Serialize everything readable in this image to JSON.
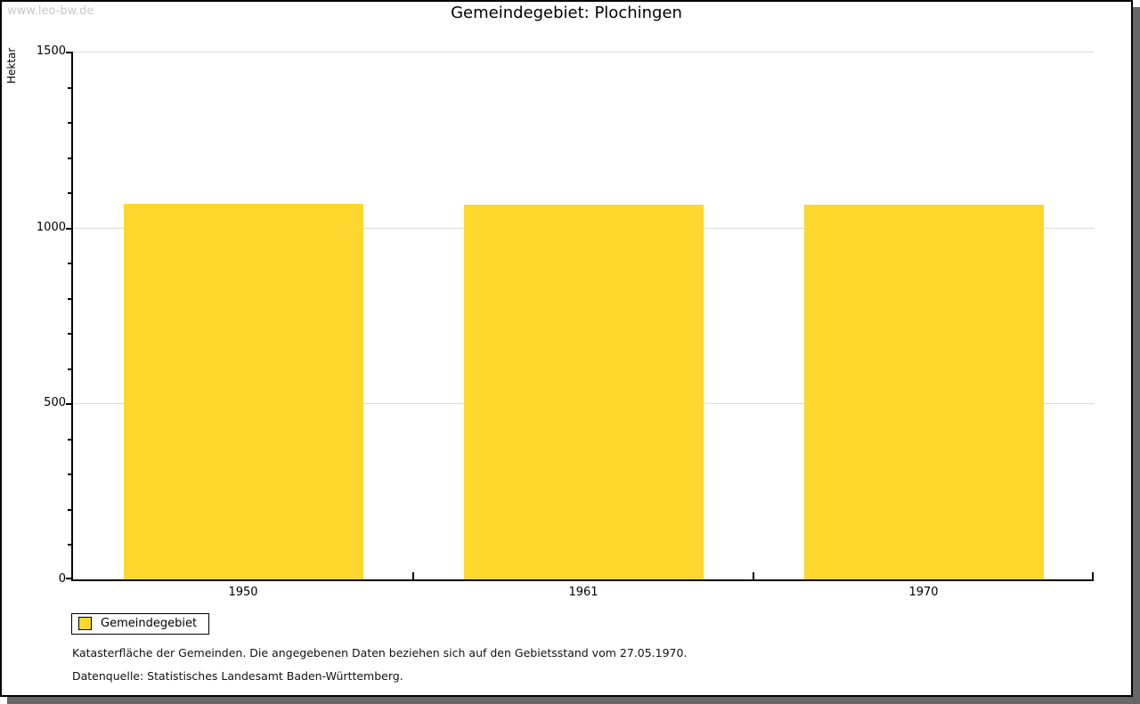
{
  "watermark": "www.leo-bw.de",
  "title": "Gemeindegebiet: Plochingen",
  "chart_data": {
    "type": "bar",
    "title": "Gemeindegebiet: Plochingen",
    "xlabel": "",
    "ylabel": "Hektar",
    "categories": [
      "1950",
      "1961",
      "1970"
    ],
    "series": [
      {
        "name": "Gemeindegebiet",
        "values": [
          1067,
          1066,
          1064
        ],
        "color": "#FDD62E"
      }
    ],
    "ylim": [
      0,
      1500
    ],
    "yticks": [
      0,
      500,
      1000,
      1500
    ],
    "minor_tick_step": 100,
    "grid": true,
    "legend_position": "bottom-left"
  },
  "legend": {
    "items": [
      {
        "label": "Gemeindegebiet",
        "swatch_color": "#FDD62E"
      }
    ]
  },
  "footnotes": [
    "Katasterfläche der Gemeinden. Die angegebenen Daten beziehen sich auf den Gebietsstand vom 27.05.1970.",
    "Datenquelle: Statistisches Landesamt Baden-Württemberg."
  ],
  "colors": {
    "bar": "#FDD62E",
    "grid": "#dcdcdc",
    "axis": "#000000",
    "watermark": "#c8c8c8",
    "shadow": "#666666",
    "background": "#ffffff"
  }
}
